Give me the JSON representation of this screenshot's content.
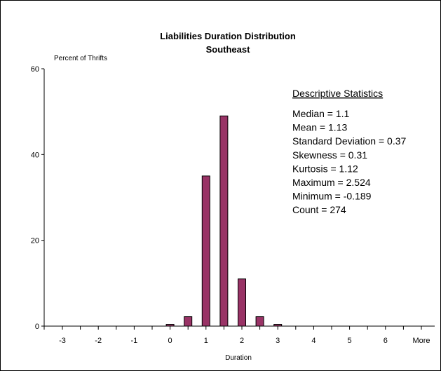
{
  "chart_data": {
    "type": "bar",
    "title": "Liabilities Duration Distribution",
    "subtitle": "Southeast",
    "ylabel": "Percent of Thrifts",
    "xlabel": "Duration",
    "ylim": [
      0,
      60
    ],
    "yticks": [
      "0",
      "20",
      "40",
      "60"
    ],
    "xtick_labels": [
      "-3",
      "-2",
      "-1",
      "0",
      "1",
      "2",
      "3",
      "4",
      "5",
      "6",
      "More"
    ],
    "grid": false,
    "legend": "none",
    "bar_color": "#993366",
    "bars": [
      {
        "x": 0.0,
        "value": 0.4
      },
      {
        "x": 0.5,
        "value": 2.2
      },
      {
        "x": 1.0,
        "value": 35
      },
      {
        "x": 1.5,
        "value": 49
      },
      {
        "x": 2.0,
        "value": 11
      },
      {
        "x": 2.5,
        "value": 2.2
      },
      {
        "x": 3.0,
        "value": 0.4
      }
    ]
  },
  "stats": {
    "heading": "Descriptive Statistics",
    "lines": [
      "Median = 1.1",
      "Mean = 1.13",
      "Standard Deviation = 0.37",
      "Skewness = 0.31",
      "Kurtosis = 1.12",
      "Maximum = 2.524",
      "Minimum = -0.189",
      "Count = 274"
    ]
  }
}
